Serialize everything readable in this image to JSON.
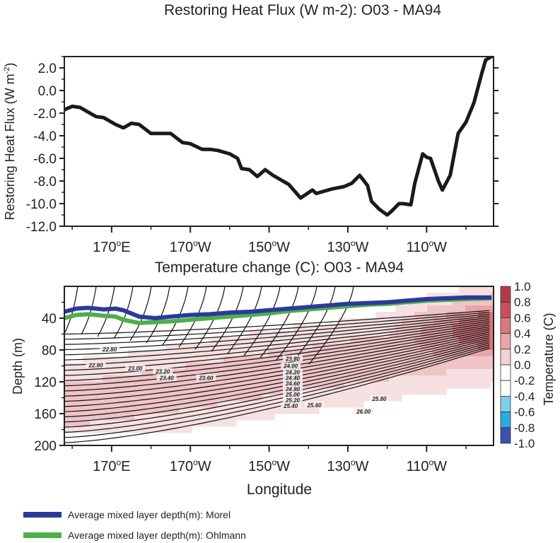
{
  "chart_data": [
    {
      "type": "line",
      "title": "Restoring Heat Flux (W m-2): O03 - MA94",
      "ylabel": "Restoring Heat Flux (W m",
      "ylabel_sup": "-2",
      "ylabel_close": ")",
      "ylim": [
        -12,
        3
      ],
      "yticks": [
        "2.0",
        "0.0",
        "-2.0",
        "-4.0",
        "-6.0",
        "-8.0",
        "-10.0",
        "-12.0"
      ],
      "xticks": [
        {
          "deg": "170",
          "sup": "o",
          "dir": "E",
          "lon": 170
        },
        {
          "deg": "170",
          "sup": "o",
          "dir": "W",
          "lon": 190
        },
        {
          "deg": "150",
          "sup": "o",
          "dir": "W",
          "lon": 210
        },
        {
          "deg": "130",
          "sup": "o",
          "dir": "W",
          "lon": 230
        },
        {
          "deg": "110",
          "sup": "o",
          "dir": "W",
          "lon": 250
        }
      ],
      "xlim": [
        158,
        267
      ],
      "series": [
        {
          "color": "#1a1a1a",
          "x": [
            158,
            160,
            162,
            166,
            168,
            171,
            173,
            175,
            177,
            180,
            182,
            185,
            188,
            190,
            193,
            195,
            197,
            200,
            202,
            203,
            205,
            207,
            209,
            211,
            213,
            215,
            218,
            221,
            222,
            224,
            226,
            229,
            231,
            233,
            235,
            236,
            238,
            240,
            241,
            243,
            244,
            246,
            247,
            249,
            250,
            251,
            253,
            254,
            256,
            258,
            260,
            262,
            264,
            265,
            266.5
          ],
          "y": [
            -1.7,
            -1.4,
            -1.5,
            -2.3,
            -2.4,
            -3.0,
            -3.3,
            -2.9,
            -3.0,
            -3.8,
            -3.8,
            -3.8,
            -4.6,
            -4.7,
            -5.2,
            -5.2,
            -5.3,
            -5.6,
            -6.0,
            -6.9,
            -7.0,
            -7.6,
            -7.0,
            -7.5,
            -7.9,
            -8.3,
            -9.5,
            -8.8,
            -9.1,
            -8.9,
            -8.7,
            -8.5,
            -8.2,
            -7.5,
            -8.4,
            -9.8,
            -10.5,
            -11.0,
            -10.7,
            -10.0,
            -10.0,
            -10.1,
            -8.2,
            -5.6,
            -5.9,
            -6.0,
            -8.0,
            -8.8,
            -7.5,
            -3.8,
            -2.8,
            -1.1,
            1.5,
            2.7,
            3.0
          ]
        }
      ]
    },
    {
      "type": "heatmap",
      "title": "Temperature change (C): O03 - MA94",
      "xlabel": "Longitude",
      "ylabel": "Depth (m)",
      "xlim": [
        158,
        267
      ],
      "ylim": [
        200,
        0
      ],
      "xticks": [
        {
          "deg": "170",
          "sup": "o",
          "dir": "E",
          "lon": 170
        },
        {
          "deg": "170",
          "sup": "o",
          "dir": "W",
          "lon": 190
        },
        {
          "deg": "150",
          "sup": "o",
          "dir": "W",
          "lon": 210
        },
        {
          "deg": "130",
          "sup": "o",
          "dir": "W",
          "lon": 230
        },
        {
          "deg": "110",
          "sup": "o",
          "dir": "W",
          "lon": 250
        }
      ],
      "yticks": [
        "40",
        "80",
        "120",
        "160",
        "200"
      ],
      "ytick_values": [
        40,
        80,
        120,
        160,
        200
      ],
      "colorbar": {
        "label": "Temperature (C)",
        "ticks": [
          "1.0",
          "0.8",
          "0.6",
          "0.4",
          "0.2",
          "0.0",
          "-0.2",
          "-0.4",
          "-0.6",
          "-0.8",
          "-1.0"
        ],
        "colors": [
          "#b53a44",
          "#c94f58",
          "#d9787f",
          "#e8a6aa",
          "#f3d2d4",
          "#ffffff",
          "#ffffff",
          "#7fd0ec",
          "#2da8e0",
          "#3e4fb2",
          "#2b2f8f"
        ]
      },
      "contour_labels": [
        {
          "text": "22.80",
          "lon": 169.5,
          "depth": 80
        },
        {
          "text": "22.80",
          "lon": 166,
          "depth": 100
        },
        {
          "text": "23.00",
          "lon": 176,
          "depth": 104
        },
        {
          "text": "23.20",
          "lon": 183,
          "depth": 108
        },
        {
          "text": "23.40",
          "lon": 184,
          "depth": 116
        },
        {
          "text": "23.60",
          "lon": 194,
          "depth": 116
        },
        {
          "text": "23.80",
          "lon": 216,
          "depth": 92
        },
        {
          "text": "24.00",
          "lon": 215.5,
          "depth": 101
        },
        {
          "text": "24.20",
          "lon": 216,
          "depth": 109
        },
        {
          "text": "24.40",
          "lon": 216,
          "depth": 116
        },
        {
          "text": "24.60",
          "lon": 216,
          "depth": 123
        },
        {
          "text": "24.80",
          "lon": 216,
          "depth": 130
        },
        {
          "text": "25.00",
          "lon": 216,
          "depth": 137
        },
        {
          "text": "25.20",
          "lon": 216,
          "depth": 144
        },
        {
          "text": "25.40",
          "lon": 215.5,
          "depth": 151
        },
        {
          "text": "25.60",
          "lon": 221.5,
          "depth": 150
        },
        {
          "text": "25.80",
          "lon": 238,
          "depth": 142
        },
        {
          "text": "26.00",
          "lon": 234,
          "depth": 158
        }
      ],
      "series": [
        {
          "name": "Average mixed layer depth(m): Morel",
          "color": "#2b3a9a",
          "x": [
            158,
            161,
            164,
            168,
            171,
            173,
            177,
            181,
            185,
            190,
            195,
            200,
            205,
            210,
            215,
            220,
            225,
            230,
            235,
            240,
            245,
            250,
            255,
            260,
            266.5
          ],
          "y": [
            32,
            28,
            27,
            29,
            28,
            30,
            38,
            40,
            38,
            36,
            35,
            33,
            32,
            30,
            28,
            26,
            24,
            22,
            21,
            20,
            18,
            16,
            15,
            14,
            14
          ]
        },
        {
          "name": "Average mixed layer depth(m): Ohlmann",
          "color": "#4fae4a",
          "x": [
            158,
            161,
            164,
            168,
            171,
            173,
            177,
            181,
            185,
            190,
            195,
            200,
            205,
            210,
            215,
            220,
            225,
            230,
            235,
            240,
            245,
            250,
            255,
            260,
            266.5
          ],
          "y": [
            40,
            36,
            35,
            37,
            38,
            42,
            46,
            45,
            44,
            42,
            40,
            38,
            36,
            34,
            31,
            29,
            27,
            25,
            23,
            22,
            20,
            18,
            17,
            16,
            15
          ]
        }
      ]
    }
  ]
}
